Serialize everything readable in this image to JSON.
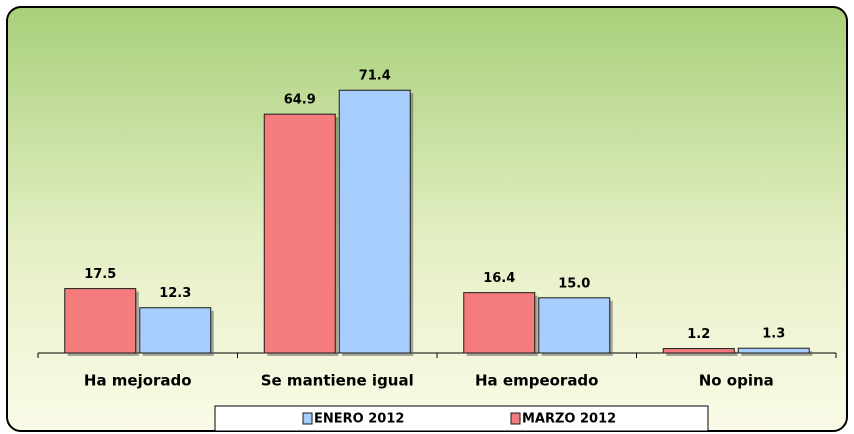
{
  "chart_data": {
    "type": "bar",
    "categories": [
      "Ha mejorado",
      "Se mantiene igual",
      "Ha empeorado",
      "No opina"
    ],
    "series": [
      {
        "name": "ENERO 2012",
        "color": "#a6cdfb",
        "values": [
          12.3,
          71.4,
          15.0,
          1.3
        ],
        "value_labels": [
          "12.3",
          "71.4",
          "15.0",
          "1.3"
        ]
      },
      {
        "name": "MARZO 2012",
        "color": "#f47c7c",
        "values": [
          17.5,
          64.9,
          16.4,
          1.2
        ],
        "value_labels": [
          "17.5",
          "64.9",
          "16.4",
          "1.2"
        ]
      }
    ]
  }
}
